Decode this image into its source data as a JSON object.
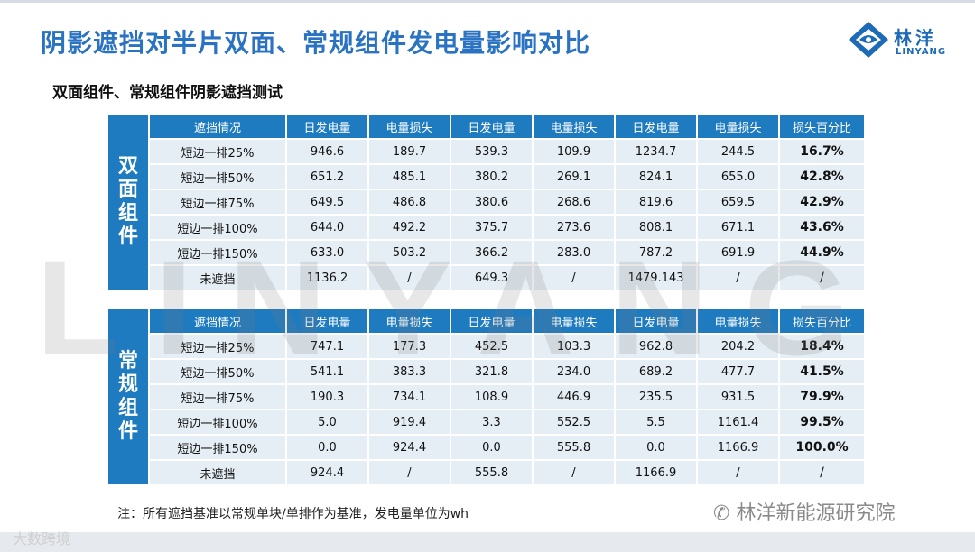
{
  "title": "阴影遮挡对半片双面、常规组件发电量影响对比",
  "subtitle": "双面组件、常规组件阴影遮挡测试",
  "logo": {
    "name": "林洋",
    "sub": "LINYANG"
  },
  "watermark": "LINYANG",
  "headers": [
    "遮挡情况",
    "日发电量",
    "电量损失",
    "日发电量",
    "电量损失",
    "日发电量",
    "电量损失",
    "损失百分比"
  ],
  "bifacial": {
    "side_label": [
      "双",
      "面",
      "组",
      "件"
    ],
    "rows": [
      [
        "短边一排25%",
        "946.6",
        "189.7",
        "539.3",
        "109.9",
        "1234.7",
        "244.5",
        "16.7%"
      ],
      [
        "短边一排50%",
        "651.2",
        "485.1",
        "380.2",
        "269.1",
        "824.1",
        "655.0",
        "42.8%"
      ],
      [
        "短边一排75%",
        "649.5",
        "486.8",
        "380.6",
        "268.6",
        "819.6",
        "659.5",
        "42.9%"
      ],
      [
        "短边一排100%",
        "644.0",
        "492.2",
        "375.7",
        "273.6",
        "808.1",
        "671.1",
        "43.6%"
      ],
      [
        "短边一排150%",
        "633.0",
        "503.2",
        "366.2",
        "283.0",
        "787.2",
        "691.9",
        "44.9%"
      ],
      [
        "未遮挡",
        "1136.2",
        "/",
        "649.3",
        "/",
        "1479.143",
        "/",
        "/"
      ]
    ]
  },
  "conventional": {
    "side_label": [
      "常",
      "规",
      "组",
      "件"
    ],
    "rows": [
      [
        "短边一排25%",
        "747.1",
        "177.3",
        "452.5",
        "103.3",
        "962.8",
        "204.2",
        "18.4%"
      ],
      [
        "短边一排50%",
        "541.1",
        "383.3",
        "321.8",
        "234.0",
        "689.2",
        "477.7",
        "41.5%"
      ],
      [
        "短边一排75%",
        "190.3",
        "734.1",
        "108.9",
        "446.9",
        "235.5",
        "931.5",
        "79.9%"
      ],
      [
        "短边一排100%",
        "5.0",
        "919.4",
        "3.3",
        "552.5",
        "5.5",
        "1161.4",
        "99.5%"
      ],
      [
        "短边一排150%",
        "0.0",
        "924.4",
        "0.0",
        "555.8",
        "0.0",
        "1166.9",
        "100.0%"
      ],
      [
        "未遮挡",
        "924.4",
        "/",
        "555.8",
        "/",
        "1166.9",
        "/",
        "/"
      ]
    ]
  },
  "note": "注：所有遮挡基准以常规单块/单排作为基准，发电量单位为wh",
  "footer_left": "大数跨境",
  "footer_right": "林洋新能源研究院",
  "colors": {
    "title": "#2a72c2",
    "header": "#1f7bbf",
    "cell": "#e6eef5"
  }
}
